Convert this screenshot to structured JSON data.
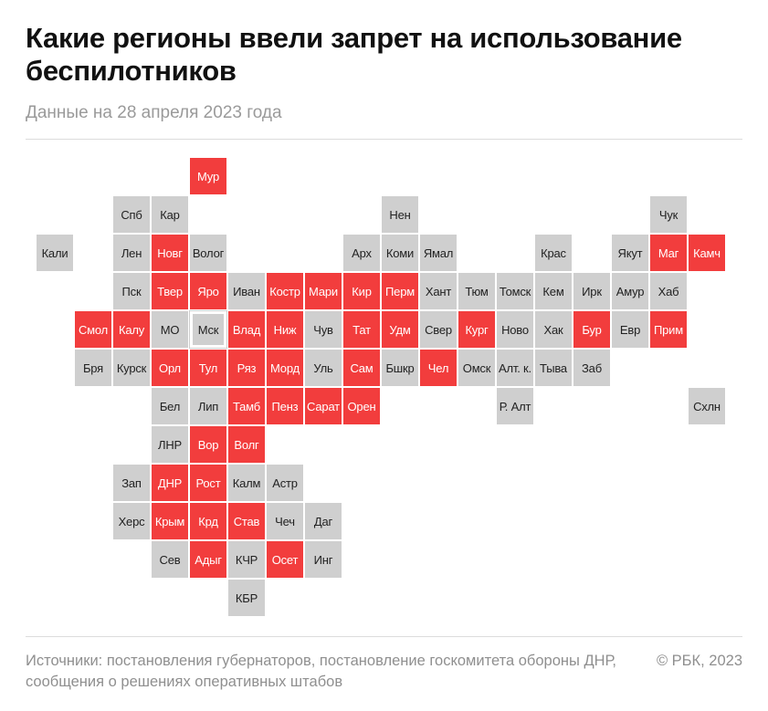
{
  "title": "Какие регионы ввели запрет на использование беспилотников",
  "subtitle": "Данные на 28 апреля 2023 года",
  "colors": {
    "ban": "#f23d3d",
    "no_ban": "#cfcfcf"
  },
  "sources": "Источники: постановления губернаторов, постановление госкомитета обороны ДНР, сообщения о решениях оперативных штабов",
  "copyright": "© РБК, 2023",
  "tiles": [
    {
      "label": "Мур",
      "col": 4,
      "row": 0,
      "ban": true
    },
    {
      "label": "Спб",
      "col": 2,
      "row": 1,
      "ban": false
    },
    {
      "label": "Кар",
      "col": 3,
      "row": 1,
      "ban": false
    },
    {
      "label": "Нен",
      "col": 9,
      "row": 1,
      "ban": false
    },
    {
      "label": "Чук",
      "col": 16,
      "row": 1,
      "ban": false
    },
    {
      "label": "Кали",
      "col": 0,
      "row": 2,
      "ban": false
    },
    {
      "label": "Лен",
      "col": 2,
      "row": 2,
      "ban": false
    },
    {
      "label": "Новг",
      "col": 3,
      "row": 2,
      "ban": true
    },
    {
      "label": "Волог",
      "col": 4,
      "row": 2,
      "ban": false
    },
    {
      "label": "Арх",
      "col": 8,
      "row": 2,
      "ban": false
    },
    {
      "label": "Коми",
      "col": 9,
      "row": 2,
      "ban": false
    },
    {
      "label": "Ямал",
      "col": 10,
      "row": 2,
      "ban": false
    },
    {
      "label": "Крас",
      "col": 13,
      "row": 2,
      "ban": false
    },
    {
      "label": "Якут",
      "col": 15,
      "row": 2,
      "ban": false
    },
    {
      "label": "Маг",
      "col": 16,
      "row": 2,
      "ban": true
    },
    {
      "label": "Камч",
      "col": 17,
      "row": 2,
      "ban": true
    },
    {
      "label": "Пск",
      "col": 2,
      "row": 3,
      "ban": false
    },
    {
      "label": "Твер",
      "col": 3,
      "row": 3,
      "ban": true
    },
    {
      "label": "Яро",
      "col": 4,
      "row": 3,
      "ban": true
    },
    {
      "label": "Иван",
      "col": 5,
      "row": 3,
      "ban": false
    },
    {
      "label": "Костр",
      "col": 6,
      "row": 3,
      "ban": true
    },
    {
      "label": "Мари",
      "col": 7,
      "row": 3,
      "ban": true
    },
    {
      "label": "Кир",
      "col": 8,
      "row": 3,
      "ban": true
    },
    {
      "label": "Перм",
      "col": 9,
      "row": 3,
      "ban": true
    },
    {
      "label": "Хант",
      "col": 10,
      "row": 3,
      "ban": false
    },
    {
      "label": "Тюм",
      "col": 11,
      "row": 3,
      "ban": false
    },
    {
      "label": "Томск",
      "col": 12,
      "row": 3,
      "ban": false
    },
    {
      "label": "Кем",
      "col": 13,
      "row": 3,
      "ban": false
    },
    {
      "label": "Ирк",
      "col": 14,
      "row": 3,
      "ban": false
    },
    {
      "label": "Амур",
      "col": 15,
      "row": 3,
      "ban": false
    },
    {
      "label": "Хаб",
      "col": 16,
      "row": 3,
      "ban": false
    },
    {
      "label": "Смол",
      "col": 1,
      "row": 4,
      "ban": true
    },
    {
      "label": "Калу",
      "col": 2,
      "row": 4,
      "ban": true
    },
    {
      "label": "МО",
      "col": 3,
      "row": 4,
      "ban": false
    },
    {
      "label": "Мск",
      "col": 4,
      "row": 4,
      "ban": false,
      "capital": true
    },
    {
      "label": "Влад",
      "col": 5,
      "row": 4,
      "ban": true
    },
    {
      "label": "Ниж",
      "col": 6,
      "row": 4,
      "ban": true
    },
    {
      "label": "Чув",
      "col": 7,
      "row": 4,
      "ban": false
    },
    {
      "label": "Тат",
      "col": 8,
      "row": 4,
      "ban": true
    },
    {
      "label": "Удм",
      "col": 9,
      "row": 4,
      "ban": true
    },
    {
      "label": "Свер",
      "col": 10,
      "row": 4,
      "ban": false
    },
    {
      "label": "Кург",
      "col": 11,
      "row": 4,
      "ban": true
    },
    {
      "label": "Ново",
      "col": 12,
      "row": 4,
      "ban": false
    },
    {
      "label": "Хак",
      "col": 13,
      "row": 4,
      "ban": false
    },
    {
      "label": "Бур",
      "col": 14,
      "row": 4,
      "ban": true
    },
    {
      "label": "Евр",
      "col": 15,
      "row": 4,
      "ban": false
    },
    {
      "label": "Прим",
      "col": 16,
      "row": 4,
      "ban": true
    },
    {
      "label": "Бря",
      "col": 1,
      "row": 5,
      "ban": false
    },
    {
      "label": "Курск",
      "col": 2,
      "row": 5,
      "ban": false
    },
    {
      "label": "Орл",
      "col": 3,
      "row": 5,
      "ban": true
    },
    {
      "label": "Тул",
      "col": 4,
      "row": 5,
      "ban": true
    },
    {
      "label": "Ряз",
      "col": 5,
      "row": 5,
      "ban": true
    },
    {
      "label": "Морд",
      "col": 6,
      "row": 5,
      "ban": true
    },
    {
      "label": "Уль",
      "col": 7,
      "row": 5,
      "ban": false
    },
    {
      "label": "Сам",
      "col": 8,
      "row": 5,
      "ban": true
    },
    {
      "label": "Бшкр",
      "col": 9,
      "row": 5,
      "ban": false
    },
    {
      "label": "Чел",
      "col": 10,
      "row": 5,
      "ban": true
    },
    {
      "label": "Омск",
      "col": 11,
      "row": 5,
      "ban": false
    },
    {
      "label": "Алт. к.",
      "col": 12,
      "row": 5,
      "ban": false
    },
    {
      "label": "Тыва",
      "col": 13,
      "row": 5,
      "ban": false
    },
    {
      "label": "Заб",
      "col": 14,
      "row": 5,
      "ban": false
    },
    {
      "label": "Бел",
      "col": 3,
      "row": 6,
      "ban": false
    },
    {
      "label": "Лип",
      "col": 4,
      "row": 6,
      "ban": false
    },
    {
      "label": "Тамб",
      "col": 5,
      "row": 6,
      "ban": true
    },
    {
      "label": "Пенз",
      "col": 6,
      "row": 6,
      "ban": true
    },
    {
      "label": "Сарат",
      "col": 7,
      "row": 6,
      "ban": true
    },
    {
      "label": "Орен",
      "col": 8,
      "row": 6,
      "ban": true
    },
    {
      "label": "Р. Алт",
      "col": 12,
      "row": 6,
      "ban": false
    },
    {
      "label": "Схлн",
      "col": 17,
      "row": 6,
      "ban": false
    },
    {
      "label": "ЛНР",
      "col": 3,
      "row": 7,
      "ban": false
    },
    {
      "label": "Вор",
      "col": 4,
      "row": 7,
      "ban": true
    },
    {
      "label": "Волг",
      "col": 5,
      "row": 7,
      "ban": true
    },
    {
      "label": "Зап",
      "col": 2,
      "row": 8,
      "ban": false
    },
    {
      "label": "ДНР",
      "col": 3,
      "row": 8,
      "ban": true
    },
    {
      "label": "Рост",
      "col": 4,
      "row": 8,
      "ban": true
    },
    {
      "label": "Калм",
      "col": 5,
      "row": 8,
      "ban": false
    },
    {
      "label": "Астр",
      "col": 6,
      "row": 8,
      "ban": false
    },
    {
      "label": "Херс",
      "col": 2,
      "row": 9,
      "ban": false
    },
    {
      "label": "Крым",
      "col": 3,
      "row": 9,
      "ban": true
    },
    {
      "label": "Крд",
      "col": 4,
      "row": 9,
      "ban": true
    },
    {
      "label": "Став",
      "col": 5,
      "row": 9,
      "ban": true
    },
    {
      "label": "Чеч",
      "col": 6,
      "row": 9,
      "ban": false
    },
    {
      "label": "Даг",
      "col": 7,
      "row": 9,
      "ban": false
    },
    {
      "label": "Сев",
      "col": 3,
      "row": 10,
      "ban": false
    },
    {
      "label": "Адыг",
      "col": 4,
      "row": 10,
      "ban": true
    },
    {
      "label": "КЧР",
      "col": 5,
      "row": 10,
      "ban": false
    },
    {
      "label": "Осет",
      "col": 6,
      "row": 10,
      "ban": true
    },
    {
      "label": "Инг",
      "col": 7,
      "row": 10,
      "ban": false
    },
    {
      "label": "КБР",
      "col": 5,
      "row": 11,
      "ban": false
    }
  ]
}
